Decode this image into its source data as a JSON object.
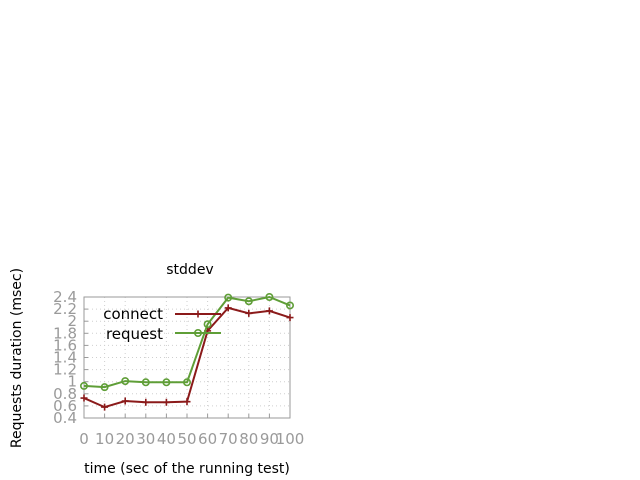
{
  "chart_data": {
    "type": "line",
    "title": "stddev",
    "xlabel": "time (sec of the running test)",
    "ylabel": "Requests duration (msec)",
    "xlim": [
      0,
      100
    ],
    "ylim": [
      0.4,
      2.4
    ],
    "xticks": [
      0,
      10,
      20,
      30,
      40,
      50,
      60,
      70,
      80,
      90,
      100
    ],
    "yticks": [
      0.4,
      0.6,
      0.8,
      1,
      1.2,
      1.4,
      1.6,
      1.8,
      2,
      2.2,
      2.4
    ],
    "xtick_labels": [
      "0",
      "10",
      "20",
      "30",
      "40",
      "50",
      "60",
      "70",
      "80",
      "90",
      "100"
    ],
    "ytick_labels": [
      "0.4",
      "0.6",
      "0.8",
      "1",
      "1.2",
      "1.4",
      "1.6",
      "1.8",
      "2",
      "2.2",
      "2.4"
    ],
    "grid": true,
    "legend": "top-left",
    "x": [
      0,
      10,
      20,
      30,
      40,
      50,
      60,
      70,
      80,
      90,
      100
    ],
    "series": [
      {
        "name": "connect",
        "color": "#8b1a1a",
        "marker": "plus",
        "values": [
          0.73,
          0.58,
          0.68,
          0.66,
          0.66,
          0.67,
          1.84,
          2.22,
          2.13,
          2.17,
          2.06
        ]
      },
      {
        "name": "request",
        "color": "#5f9e37",
        "marker": "circle",
        "values": [
          0.93,
          0.91,
          1.01,
          0.99,
          0.99,
          0.99,
          1.95,
          2.39,
          2.33,
          2.4,
          2.26
        ]
      }
    ]
  }
}
